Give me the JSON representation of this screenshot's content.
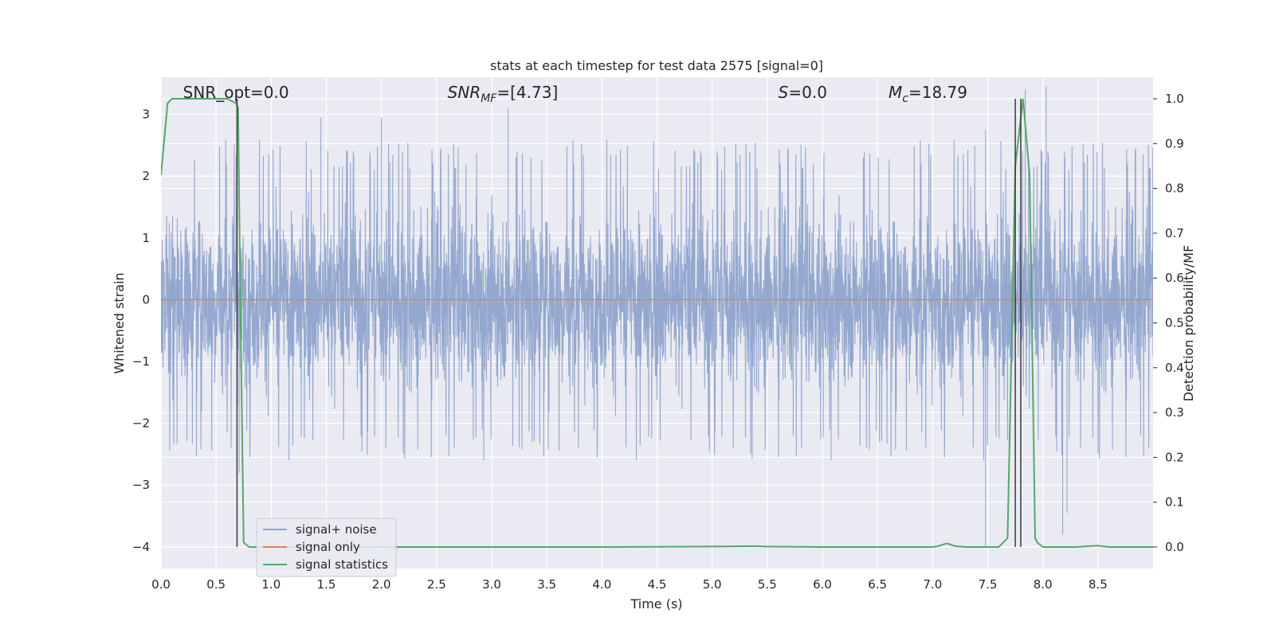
{
  "chart_data": {
    "type": "line",
    "title": "stats at each timestep for test data 2575 [signal=0]",
    "xlabel": "Time (s)",
    "ylabel": "Whitened strain",
    "y2label": "Detection probability/MF",
    "xlim": [
      0.0,
      9.0
    ],
    "ylim": [
      -4.35,
      3.6
    ],
    "y2lim": [
      -0.048,
      1.048
    ],
    "x_ticks": [
      "0.0",
      "0.5",
      "1.0",
      "1.5",
      "2.0",
      "2.5",
      "3.0",
      "3.5",
      "4.0",
      "4.5",
      "5.0",
      "5.5",
      "6.0",
      "6.5",
      "7.0",
      "7.5",
      "8.0",
      "8.5"
    ],
    "y_ticks": [
      "3",
      "2",
      "1",
      "0",
      "−1",
      "−2",
      "−3",
      "−4"
    ],
    "y2_ticks": [
      "0.0",
      "0.1",
      "0.2",
      "0.3",
      "0.4",
      "0.5",
      "0.6",
      "0.7",
      "0.8",
      "0.9",
      "1.0"
    ],
    "grid": true,
    "legend_position": "lower-left",
    "annotations": [
      {
        "text": "SNR_opt=0.0",
        "x": 0.2
      },
      {
        "text": "SNR",
        "sub": "MF",
        "rest": "=[4.73]",
        "x": 2.6
      },
      {
        "text": "S",
        "rest": "=0.0",
        "x": 5.6
      },
      {
        "text": "M",
        "sub": "c",
        "rest": "=18.79",
        "x": 6.6
      }
    ],
    "series": [
      {
        "name": "signal+ noise",
        "color": "#8fa4cc",
        "note": "dense whitened noise trace, amplitude roughly within ±2 with spikes to about ±3.5",
        "envelope": {
          "typical_abs": 1.1,
          "burst_abs": 2.1,
          "max_spikes": [
            [
              0.71,
              -2.8
            ],
            [
              1.45,
              2.95
            ],
            [
              2.0,
              2.95
            ],
            [
              3.15,
              3.1
            ],
            [
              7.48,
              2.75
            ],
            [
              7.48,
              -4.0
            ],
            [
              7.8,
              2.9
            ],
            [
              7.84,
              3.4
            ],
            [
              8.03,
              3.45
            ],
            [
              8.18,
              -3.8
            ],
            [
              8.22,
              -3.45
            ]
          ]
        }
      },
      {
        "name": "signal only",
        "color": "#dd8452",
        "x": [
          0.0,
          9.0
        ],
        "y": [
          0.0,
          0.0
        ]
      },
      {
        "name": "signal statistics",
        "color": "#55a868",
        "axis": "right",
        "x": [
          0.0,
          0.06,
          0.1,
          0.15,
          0.2,
          0.3,
          0.4,
          0.5,
          0.6,
          0.68,
          0.7,
          0.72,
          0.75,
          0.8,
          0.9,
          1.0,
          2.0,
          3.0,
          4.0,
          5.0,
          5.4,
          5.5,
          6.0,
          7.0,
          7.05,
          7.13,
          7.2,
          7.3,
          7.5,
          7.6,
          7.68,
          7.75,
          7.82,
          7.88,
          7.93,
          7.95,
          8.0,
          8.3,
          8.5,
          8.6,
          9.0
        ],
        "y": [
          0.83,
          0.99,
          1.0,
          1.0,
          1.0,
          1.0,
          1.0,
          1.0,
          1.0,
          0.99,
          0.98,
          0.55,
          0.01,
          0.0,
          0.0,
          0.0,
          0.0,
          0.0,
          0.0,
          0.001,
          0.002,
          0.001,
          0.0,
          0.0,
          0.002,
          0.008,
          0.002,
          0.0,
          0.0,
          0.0,
          0.02,
          0.85,
          1.0,
          0.83,
          0.02,
          0.01,
          0.0,
          0.0,
          0.003,
          0.0,
          0.0
        ]
      }
    ],
    "vlines_color": "#3a3a3a",
    "vlines": [
      {
        "x": 0.69,
        "y_right": [
          0.0,
          1.0
        ]
      },
      {
        "x": 7.75,
        "y_right": [
          0.0,
          1.0
        ]
      },
      {
        "x": 7.8,
        "y_right": [
          0.0,
          1.0
        ]
      }
    ]
  }
}
